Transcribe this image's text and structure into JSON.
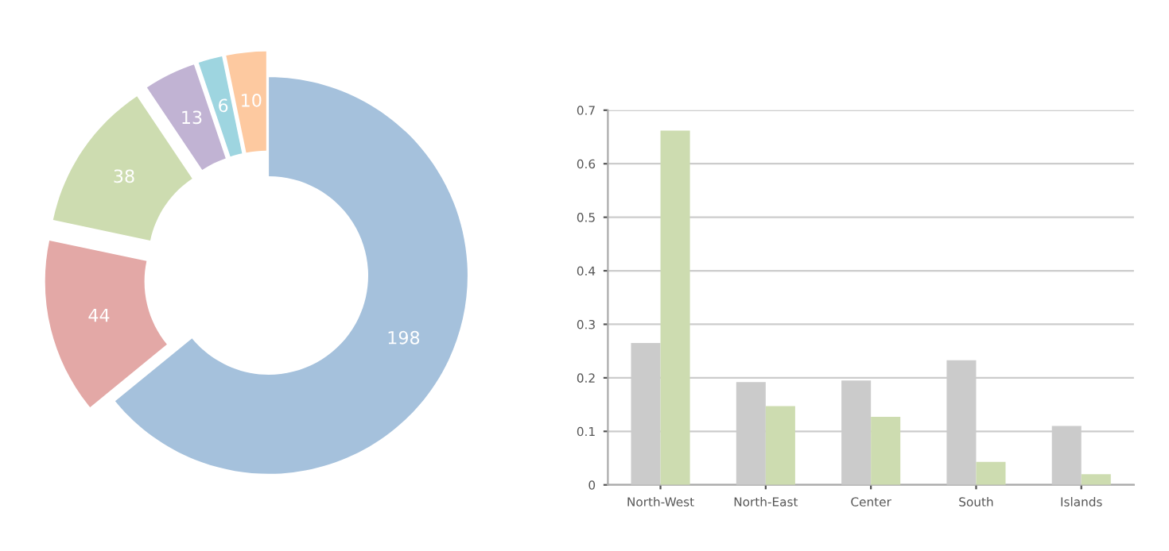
{
  "chart_data": [
    {
      "type": "donut",
      "categories": [
        null,
        null,
        null,
        null,
        null,
        null
      ],
      "values": [
        198,
        44,
        38,
        13,
        6,
        10
      ],
      "colors": [
        "#a5c1dc",
        "#e3a8a6",
        "#cddcb0",
        "#c1b3d3",
        "#9ed5e0",
        "#fdc9a0"
      ],
      "data_labels": true
    },
    {
      "type": "bar",
      "categories": [
        "North-West",
        "North-East",
        "Center",
        "South",
        "Islands"
      ],
      "series": [
        {
          "color": "#cbcbcb",
          "values": [
            0.265,
            0.192,
            0.195,
            0.233,
            0.11
          ]
        },
        {
          "color": "#cddcb0",
          "values": [
            0.662,
            0.147,
            0.127,
            0.043,
            0.02
          ]
        }
      ],
      "ylim": [
        0,
        0.7
      ],
      "yticks": [
        0,
        0.1,
        0.2,
        0.3,
        0.4,
        0.5,
        0.6,
        0.7
      ],
      "grid": "y"
    }
  ]
}
